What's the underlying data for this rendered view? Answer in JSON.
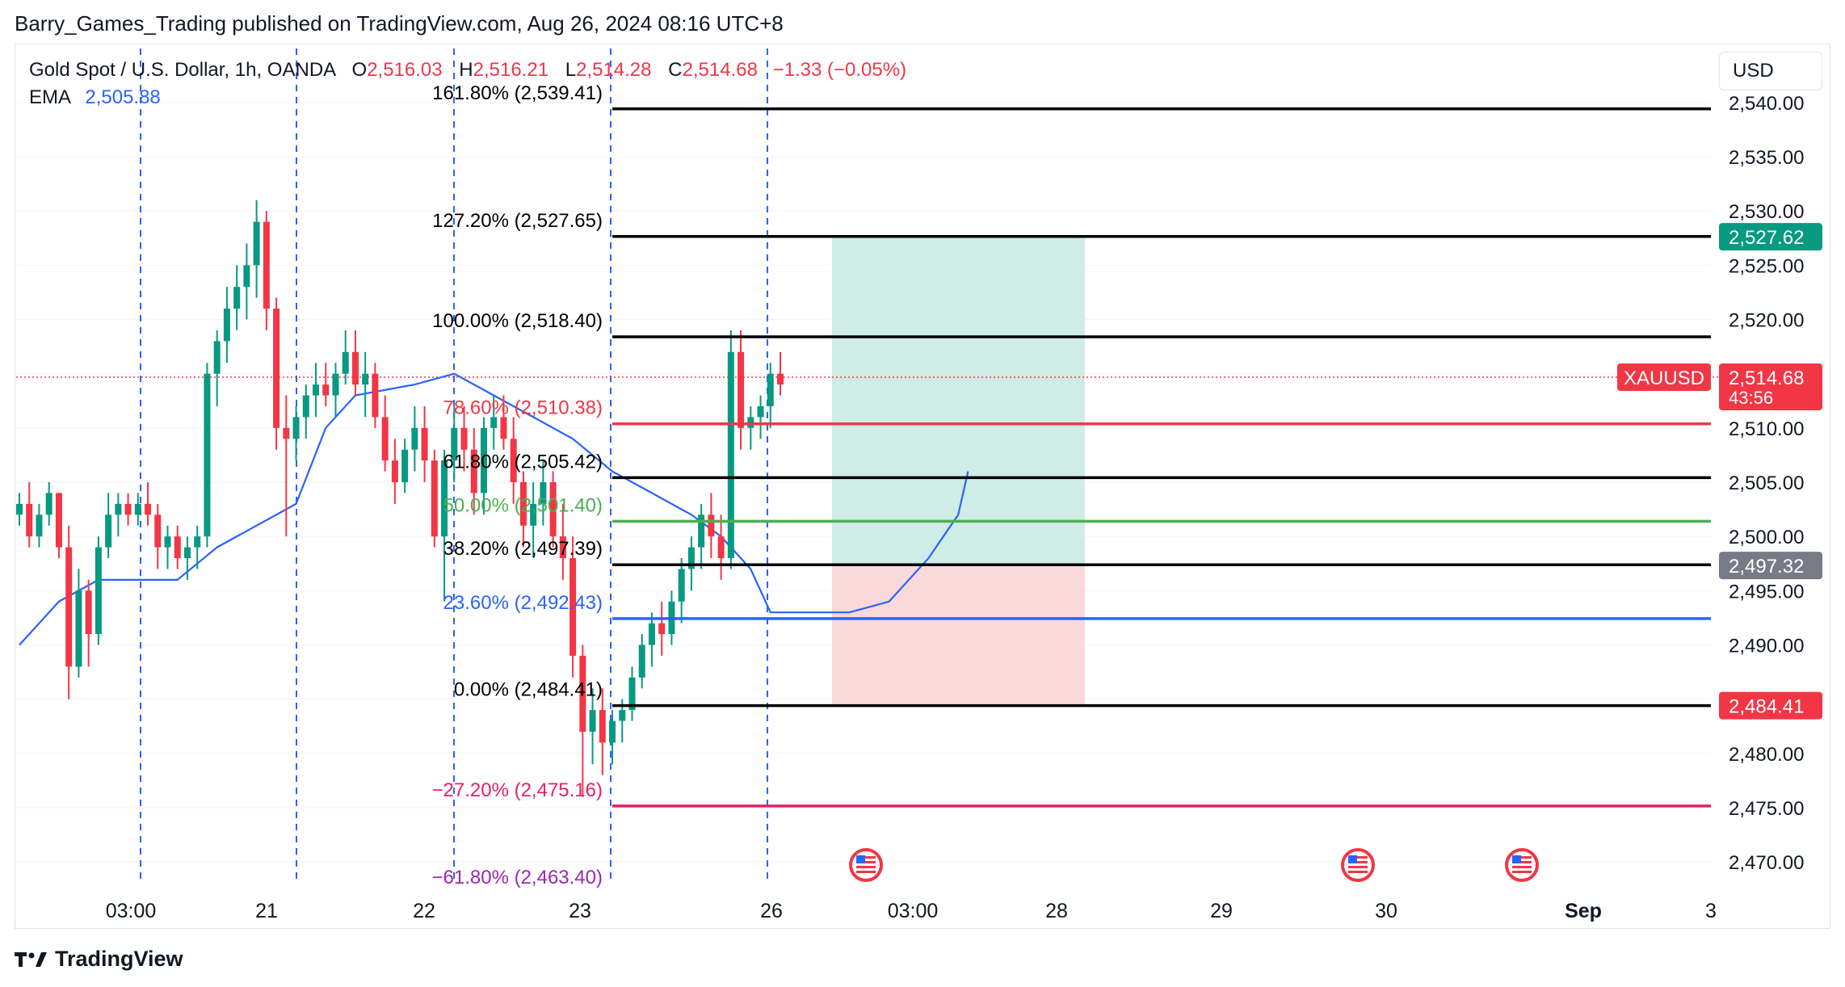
{
  "header": {
    "published_line": "Barry_Games_Trading published on TradingView.com, Aug 26, 2024 08:16 UTC+8"
  },
  "legend": {
    "symbol_line": "Gold Spot / U.S. Dollar, 1h, OANDA",
    "open_label": "O",
    "open": "2,516.03",
    "high_label": "H",
    "high": "2,516.21",
    "low_label": "L",
    "low": "2,514.28",
    "close_label": "C",
    "close": "2,514.68",
    "change": "−1.33 (−0.05%)",
    "ema_label": "EMA",
    "ema_value": "2,505.88"
  },
  "currency_button": "USD",
  "footer": {
    "brand": "TradingView"
  },
  "colors": {
    "up": "#089981",
    "down": "#f23645",
    "ema": "#2962ff",
    "fib_black": "#000000",
    "fib_red": "#f23645",
    "fib_green": "#4caf50",
    "fib_blue": "#2962ff",
    "fib_pink": "#e91e63",
    "fib_purple": "#9c27b0",
    "target_zone": "#cfece6",
    "stop_zone": "#fbd8da"
  },
  "chart_data": {
    "type": "candlestick",
    "title": "Gold Spot / U.S. Dollar, 1h, OANDA",
    "ylim": [
      2468,
      2542
    ],
    "y_ticks": [
      "2,540.00",
      "2,535.00",
      "2,530.00",
      "2,525.00",
      "2,520.00",
      "2,515.00",
      "2,510.00",
      "2,505.00",
      "2,500.00",
      "2,495.00",
      "2,490.00",
      "2,485.00",
      "2,480.00",
      "2,475.00",
      "2,470.00"
    ],
    "y_tick_values": [
      2540,
      2535,
      2530,
      2525,
      2520,
      2515,
      2510,
      2505,
      2500,
      2495,
      2490,
      2485,
      2480,
      2475,
      2470
    ],
    "x_tick_labels": [
      "03:00",
      "21",
      "22",
      "23",
      "26",
      "03:00",
      "28",
      "29",
      "30",
      "Sep",
      "3"
    ],
    "x_tick_bold": [
      "Sep"
    ],
    "fib_levels": [
      {
        "label": "161.80% (2,539.41)",
        "value": 2539.41,
        "color": "fib_black"
      },
      {
        "label": "127.20% (2,527.65)",
        "value": 2527.65,
        "color": "fib_black"
      },
      {
        "label": "100.00% (2,518.40)",
        "value": 2518.4,
        "color": "fib_black"
      },
      {
        "label": "78.60% (2,510.38)",
        "value": 2510.38,
        "color": "fib_red"
      },
      {
        "label": "61.80% (2,505.42)",
        "value": 2505.42,
        "color": "fib_black"
      },
      {
        "label": "50.00% (2,501.40)",
        "value": 2501.4,
        "color": "fib_green"
      },
      {
        "label": "38.20% (2,497.39)",
        "value": 2497.39,
        "color": "fib_black"
      },
      {
        "label": "23.60% (2,492.43)",
        "value": 2492.43,
        "color": "fib_blue"
      },
      {
        "label": "0.00% (2,484.41)",
        "value": 2484.41,
        "color": "fib_black"
      },
      {
        "label": "−27.20% (2,475.16)",
        "value": 2475.16,
        "color": "fib_pink"
      },
      {
        "label": "−61.80% (2,463.40)",
        "value": 2463.4,
        "color": "fib_purple"
      }
    ],
    "price_badges": [
      {
        "label": "",
        "value": "2,527.62",
        "price": 2527.62,
        "color": "#089981"
      },
      {
        "label": "XAUUSD",
        "value": "2,514.68",
        "sub": "43:56",
        "price": 2514.68,
        "color": "#f23645"
      },
      {
        "label": "",
        "value": "2,497.32",
        "price": 2497.32,
        "color": "#787b86"
      },
      {
        "label": "",
        "value": "2,484.41",
        "price": 2484.41,
        "color": "#f23645"
      }
    ],
    "current_price": 2514.68,
    "position": {
      "entry": 2497.32,
      "target": 2527.62,
      "stop": 2484.41
    },
    "ema_anchor_points": [
      [
        0,
        2490
      ],
      [
        4,
        2494
      ],
      [
        8,
        2496
      ],
      [
        12,
        2496
      ],
      [
        16,
        2496
      ],
      [
        20,
        2499
      ],
      [
        24,
        2501
      ],
      [
        28,
        2503
      ],
      [
        31,
        2510
      ],
      [
        34,
        2513
      ],
      [
        40,
        2514
      ],
      [
        44,
        2515
      ],
      [
        48,
        2513
      ],
      [
        52,
        2511
      ],
      [
        56,
        2509
      ],
      [
        60,
        2506
      ],
      [
        64,
        2504
      ],
      [
        68,
        2502
      ],
      [
        71,
        2500
      ],
      [
        74,
        2497
      ],
      [
        76,
        2493
      ],
      [
        80,
        2493
      ],
      [
        84,
        2493
      ],
      [
        88,
        2494
      ],
      [
        92,
        2498
      ],
      [
        95,
        2502
      ],
      [
        96,
        2506
      ]
    ],
    "candles": [
      [
        2502,
        2504,
        2501,
        2503
      ],
      [
        2503,
        2505,
        2499,
        2500
      ],
      [
        2500,
        2503,
        2499,
        2502
      ],
      [
        2502,
        2505,
        2501,
        2504
      ],
      [
        2504,
        2504,
        2498,
        2499
      ],
      [
        2499,
        2501,
        2485,
        2488
      ],
      [
        2488,
        2497,
        2487,
        2495
      ],
      [
        2495,
        2496,
        2488,
        2491
      ],
      [
        2491,
        2500,
        2490,
        2499
      ],
      [
        2499,
        2504,
        2498,
        2502
      ],
      [
        2502,
        2504,
        2500,
        2503
      ],
      [
        2503,
        2504,
        2501,
        2502
      ],
      [
        2502,
        2504,
        2501,
        2503
      ],
      [
        2503,
        2505,
        2501,
        2502
      ],
      [
        2502,
        2503,
        2497,
        2499
      ],
      [
        2499,
        2501,
        2497,
        2500
      ],
      [
        2500,
        2501,
        2497,
        2498
      ],
      [
        2498,
        2500,
        2496,
        2499
      ],
      [
        2499,
        2501,
        2497,
        2500
      ],
      [
        2500,
        2516,
        2499,
        2515
      ],
      [
        2515,
        2519,
        2512,
        2518
      ],
      [
        2518,
        2523,
        2516,
        2521
      ],
      [
        2521,
        2525,
        2519,
        2523
      ],
      [
        2523,
        2527,
        2520,
        2525
      ],
      [
        2525,
        2531,
        2522,
        2529
      ],
      [
        2529,
        2530,
        2519,
        2521
      ],
      [
        2521,
        2522,
        2508,
        2510
      ],
      [
        2510,
        2513,
        2500,
        2509
      ],
      [
        2509,
        2512,
        2507,
        2511
      ],
      [
        2511,
        2514,
        2509,
        2513
      ],
      [
        2513,
        2516,
        2511,
        2514
      ],
      [
        2514,
        2516,
        2512,
        2513
      ],
      [
        2513,
        2516,
        2511,
        2515
      ],
      [
        2515,
        2519,
        2514,
        2517
      ],
      [
        2517,
        2519,
        2513,
        2514
      ],
      [
        2514,
        2517,
        2511,
        2515
      ],
      [
        2515,
        2516,
        2510,
        2511
      ],
      [
        2511,
        2513,
        2506,
        2507
      ],
      [
        2507,
        2509,
        2503,
        2505
      ],
      [
        2505,
        2509,
        2504,
        2508
      ],
      [
        2508,
        2512,
        2506,
        2510
      ],
      [
        2510,
        2512,
        2505,
        2507
      ],
      [
        2507,
        2508,
        2499,
        2500
      ],
      [
        2500,
        2508,
        2494,
        2507
      ],
      [
        2507,
        2512,
        2505,
        2510
      ],
      [
        2510,
        2512,
        2506,
        2508
      ],
      [
        2508,
        2510,
        2502,
        2504
      ],
      [
        2504,
        2511,
        2502,
        2510
      ],
      [
        2510,
        2513,
        2508,
        2511
      ],
      [
        2511,
        2513,
        2508,
        2509
      ],
      [
        2509,
        2511,
        2503,
        2505
      ],
      [
        2505,
        2506,
        2499,
        2501
      ],
      [
        2501,
        2505,
        2498,
        2503
      ],
      [
        2503,
        2507,
        2501,
        2505
      ],
      [
        2505,
        2506,
        2499,
        2500
      ],
      [
        2500,
        2503,
        2496,
        2498
      ],
      [
        2498,
        2500,
        2487,
        2489
      ],
      [
        2489,
        2490,
        2476,
        2482
      ],
      [
        2482,
        2486,
        2479,
        2484
      ],
      [
        2484,
        2486,
        2478,
        2481
      ],
      [
        2481,
        2484,
        2479,
        2483
      ],
      [
        2483,
        2485,
        2481,
        2484
      ],
      [
        2484,
        2488,
        2483,
        2487
      ],
      [
        2487,
        2491,
        2486,
        2490
      ],
      [
        2490,
        2493,
        2488,
        2492
      ],
      [
        2492,
        2494,
        2489,
        2491
      ],
      [
        2491,
        2495,
        2490,
        2494
      ],
      [
        2494,
        2498,
        2492,
        2497
      ],
      [
        2497,
        2500,
        2495,
        2499
      ],
      [
        2499,
        2503,
        2497,
        2502
      ],
      [
        2502,
        2504,
        2498,
        2500
      ],
      [
        2500,
        2502,
        2496,
        2498
      ],
      [
        2498,
        2519,
        2497,
        2517
      ],
      [
        2517,
        2519,
        2508,
        2510
      ],
      [
        2510,
        2512,
        2508,
        2511
      ],
      [
        2511,
        2513,
        2509,
        2512
      ],
      [
        2512,
        2516,
        2510,
        2515
      ],
      [
        2515,
        2517,
        2513,
        2514
      ]
    ]
  }
}
